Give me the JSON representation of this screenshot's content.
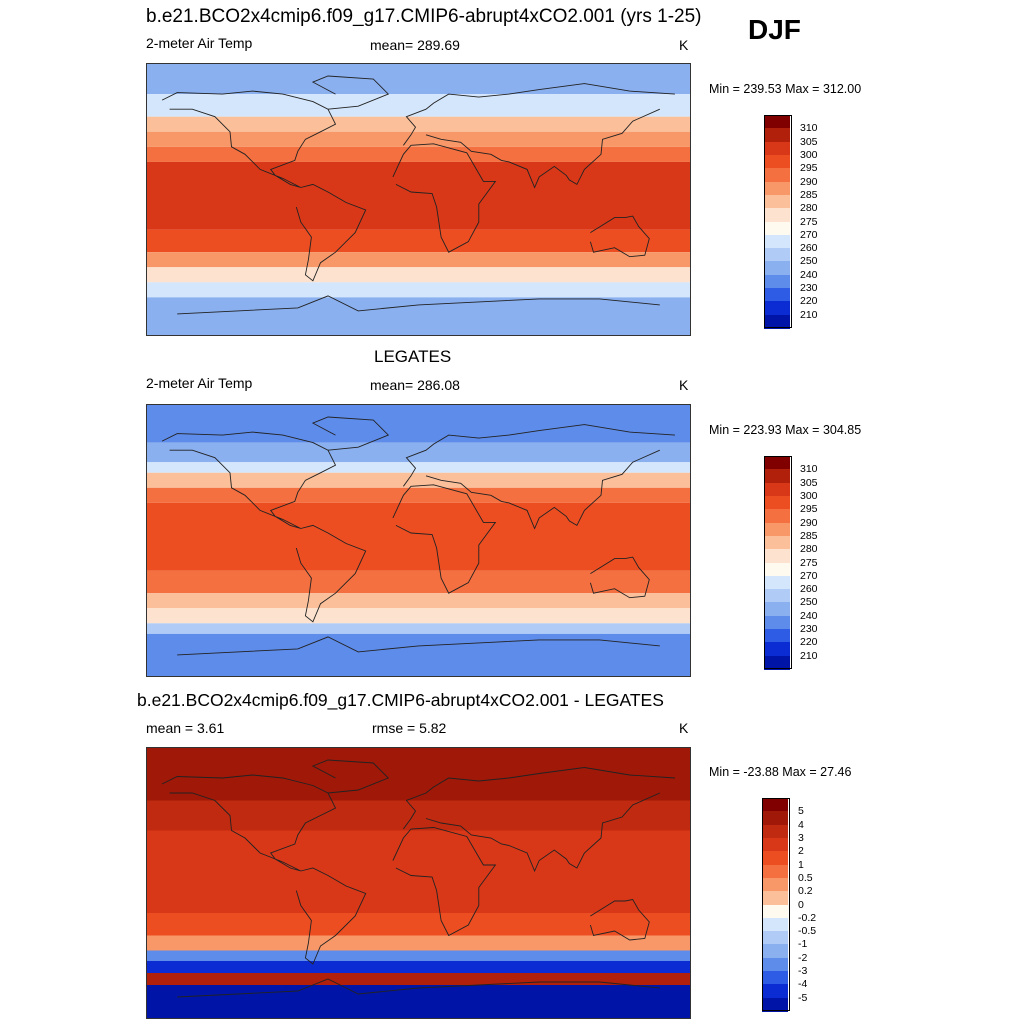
{
  "season": "DJF",
  "panels": [
    {
      "title": "b.e21.BCO2x4cmip6.f09_g17.CMIP6-abrupt4xCO2.001 (yrs 1-25)",
      "left_label": "2-meter Air Temp",
      "center_label": "mean= 289.69",
      "units": "K",
      "minmax": "Min = 239.53 Max = 312.00",
      "colorbar_labels": [
        "310",
        "305",
        "300",
        "295",
        "290",
        "285",
        "280",
        "275",
        "270",
        "260",
        "250",
        "240",
        "230",
        "220",
        "210"
      ],
      "colors": [
        "#800000",
        "#b0200a",
        "#d83818",
        "#ec4e22",
        "#f47040",
        "#f89868",
        "#fbbf9a",
        "#fde3cf",
        "#fefaf0",
        "#d4e6fb",
        "#b0ccf6",
        "#8ab0f0",
        "#5e8cea",
        "#2e5ce4",
        "#0a2cd2",
        "#0014a8"
      ],
      "zones": [
        {
          "lat_from": 90,
          "lat_to": 70,
          "color": "#8ab0f0"
        },
        {
          "lat_from": 70,
          "lat_to": 55,
          "color": "#d4e6fb"
        },
        {
          "lat_from": 55,
          "lat_to": 45,
          "color": "#fbbf9a"
        },
        {
          "lat_from": 45,
          "lat_to": 35,
          "color": "#f89868"
        },
        {
          "lat_from": 35,
          "lat_to": 25,
          "color": "#f47040"
        },
        {
          "lat_from": 25,
          "lat_to": -20,
          "color": "#d83818"
        },
        {
          "lat_from": -20,
          "lat_to": -35,
          "color": "#ec4e22"
        },
        {
          "lat_from": -35,
          "lat_to": -45,
          "color": "#f89868"
        },
        {
          "lat_from": -45,
          "lat_to": -55,
          "color": "#fde3cf"
        },
        {
          "lat_from": -55,
          "lat_to": -65,
          "color": "#d4e6fb"
        },
        {
          "lat_from": -65,
          "lat_to": -90,
          "color": "#8ab0f0"
        }
      ]
    },
    {
      "title": "LEGATES",
      "left_label": "2-meter Air Temp",
      "center_label": "mean= 286.08",
      "units": "K",
      "minmax": "Min = 223.93 Max = 304.85",
      "colorbar_labels": [
        "310",
        "305",
        "300",
        "295",
        "290",
        "285",
        "280",
        "275",
        "270",
        "260",
        "250",
        "240",
        "230",
        "220",
        "210"
      ],
      "colors": [
        "#800000",
        "#b0200a",
        "#d83818",
        "#ec4e22",
        "#f47040",
        "#f89868",
        "#fbbf9a",
        "#fde3cf",
        "#fefaf0",
        "#d4e6fb",
        "#b0ccf6",
        "#8ab0f0",
        "#5e8cea",
        "#2e5ce4",
        "#0a2cd2",
        "#0014a8"
      ],
      "zones": [
        {
          "lat_from": 90,
          "lat_to": 65,
          "color": "#5e8cea"
        },
        {
          "lat_from": 65,
          "lat_to": 52,
          "color": "#8ab0f0"
        },
        {
          "lat_from": 52,
          "lat_to": 45,
          "color": "#d4e6fb"
        },
        {
          "lat_from": 45,
          "lat_to": 35,
          "color": "#fbbf9a"
        },
        {
          "lat_from": 35,
          "lat_to": 25,
          "color": "#f47040"
        },
        {
          "lat_from": 25,
          "lat_to": -20,
          "color": "#ec4e22"
        },
        {
          "lat_from": -20,
          "lat_to": -35,
          "color": "#f47040"
        },
        {
          "lat_from": -35,
          "lat_to": -45,
          "color": "#fbbf9a"
        },
        {
          "lat_from": -45,
          "lat_to": -55,
          "color": "#fde3cf"
        },
        {
          "lat_from": -55,
          "lat_to": -62,
          "color": "#b0ccf6"
        },
        {
          "lat_from": -62,
          "lat_to": -90,
          "color": "#5e8cea"
        }
      ]
    },
    {
      "title": "b.e21.BCO2x4cmip6.f09_g17.CMIP6-abrupt4xCO2.001 - LEGATES",
      "left_label": "mean =   3.61",
      "center_label": "rmse =   5.82",
      "units": "K",
      "minmax": "Min = -23.88 Max =  27.46",
      "colorbar_labels": [
        "5",
        "4",
        "3",
        "2",
        "1",
        "0.5",
        "0.2",
        "0",
        "-0.2",
        "-0.5",
        "-1",
        "-2",
        "-3",
        "-4",
        "-5"
      ],
      "colors": [
        "#800000",
        "#a01808",
        "#c02a10",
        "#d83818",
        "#ec4e22",
        "#f47040",
        "#f89868",
        "#fbbf9a",
        "#fefaf0",
        "#d4e6fb",
        "#b0ccf6",
        "#8ab0f0",
        "#5e8cea",
        "#2e5ce4",
        "#0a2cd2",
        "#0014a8"
      ],
      "zones": [
        {
          "lat_from": 90,
          "lat_to": 55,
          "color": "#a01808"
        },
        {
          "lat_from": 55,
          "lat_to": 35,
          "color": "#c02a10"
        },
        {
          "lat_from": 35,
          "lat_to": -20,
          "color": "#d83818"
        },
        {
          "lat_from": -20,
          "lat_to": -35,
          "color": "#ec4e22"
        },
        {
          "lat_from": -35,
          "lat_to": -45,
          "color": "#f89868"
        },
        {
          "lat_from": -45,
          "lat_to": -52,
          "color": "#5e8cea"
        },
        {
          "lat_from": -52,
          "lat_to": -60,
          "color": "#0a2cd2"
        },
        {
          "lat_from": -60,
          "lat_to": -68,
          "color": "#b0200a"
        },
        {
          "lat_from": -68,
          "lat_to": -90,
          "color": "#0014a8"
        }
      ]
    }
  ]
}
